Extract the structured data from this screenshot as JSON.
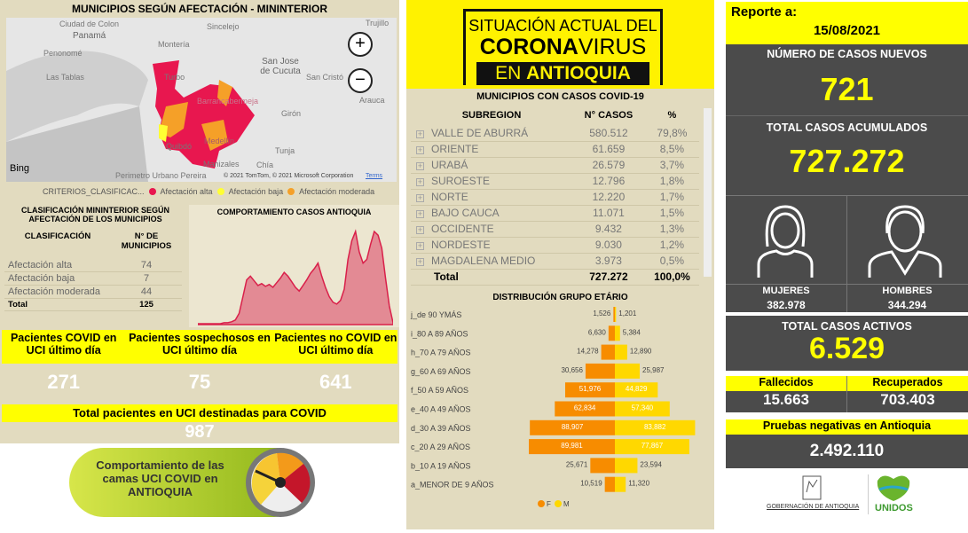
{
  "map": {
    "title": "MUNICIPIOS SEGÚN AFECTACIÓN - MININTERIOR",
    "places": [
      "Ciudad de Colon",
      "Panamá",
      "Penonomé",
      "Las Tablas",
      "Montería",
      "Sincelejo",
      "Turbo",
      "San Jose de Cucuta",
      "San Cristó",
      "Arauca",
      "Barrancabermeja",
      "Girón",
      "Tunja",
      "Medellín",
      "Quibdó",
      "Manizales",
      "Chía",
      "Trujillo",
      "Perimetro Urbano Pereira"
    ],
    "bing": "Bing",
    "copyright": "© 2021 TomTom, © 2021 Microsoft Corporation",
    "terms": "Terms",
    "zoom_in": "+",
    "zoom_out": "−"
  },
  "legend": {
    "label": "CRITERIOS_CLASIFICAC...",
    "items": [
      {
        "label": "Afectación alta",
        "color": "#e8174f"
      },
      {
        "label": "Afectación baja",
        "color": "#ffff33"
      },
      {
        "label": "Afectación moderada",
        "color": "#f5a028"
      }
    ]
  },
  "clasif": {
    "title": "CLASIFICACIÓN MININTERIOR SEGÚN AFECTACIÓN DE LOS MUNICIPIOS",
    "headers": [
      "CLASIFICACIÓN",
      "N° DE MUNICIPIOS"
    ],
    "rows": [
      [
        "Afectación alta",
        "74"
      ],
      [
        "Afectación baja",
        "7"
      ],
      [
        "Afectación moderada",
        "44"
      ]
    ],
    "total": [
      "Total",
      "125"
    ]
  },
  "chart_data": [
    {
      "type": "area",
      "title": "COMPORTAMIENTO CASOS ANTIOQUIA",
      "color": "#e0405a",
      "values": [
        1,
        1,
        1,
        1,
        1,
        1,
        1,
        2,
        2,
        3,
        5,
        12,
        30,
        48,
        52,
        47,
        42,
        44,
        41,
        43,
        40,
        45,
        50,
        56,
        52,
        46,
        40,
        36,
        42,
        48,
        55,
        60,
        66,
        52,
        40,
        30,
        24,
        22,
        26,
        38,
        70,
        90,
        100,
        78,
        66,
        70,
        86,
        100,
        96,
        82,
        50,
        20,
        2
      ]
    },
    {
      "type": "bar",
      "orientation": "horizontal-pyramid",
      "title": "DISTRIBUCIÓN GRUPO ETÁRIO",
      "categories": [
        "j_de 90 YMÁS",
        "i_80 A 89 AÑOS",
        "h_70 A 79 AÑOS",
        "g_60 A 69 AÑOS",
        "f_50 A 59 AÑOS",
        "e_40 A 49 AÑOS",
        "d_30 A 39 AÑOS",
        "c_20 A 29 AÑOS",
        "b_10 A 19 AÑOS",
        "a_MENOR DE 9 AÑOS"
      ],
      "series": [
        {
          "name": "F",
          "color": "#f78c00",
          "values": [
            1526,
            6630,
            14278,
            30656,
            51976,
            62834,
            88907,
            89981,
            25671,
            10519
          ],
          "labels": [
            "1,526",
            "6,630",
            "14,278",
            "30,656",
            "51,976",
            "62,834",
            "88,907",
            "89,981",
            "25,671",
            "10,519"
          ]
        },
        {
          "name": "M",
          "color": "#ffd800",
          "values": [
            1201,
            5384,
            12890,
            25987,
            44829,
            57340,
            83882,
            77867,
            23594,
            11320
          ],
          "labels": [
            "1,201",
            "5,384",
            "12,890",
            "25,987",
            "44,829",
            "57,340",
            "83,882",
            "77,867",
            "23,594",
            "11,320"
          ]
        }
      ],
      "legend": "bottom"
    }
  ],
  "uci": {
    "headers": [
      "Pacientes COVID en UCI último día",
      "Pacientes sospechosos en UCI último día",
      "Pacientes no COVID en UCI último día"
    ],
    "values": [
      "271",
      "75",
      "641"
    ],
    "total_label": "Total pacientes en UCI destinadas para COVID",
    "total": "987"
  },
  "banner": {
    "text": "Comportamiento de las camas UCI COVID en ANTIOQUIA"
  },
  "logo": {
    "line1": "SITUACIÓN ACTUAL DEL",
    "line2a": "CORONA",
    "line2b": "VIRUS",
    "line3a": "EN ",
    "line3b": "ANTIOQUIA"
  },
  "subregions": {
    "title": "MUNICIPIOS CON CASOS COVID-19",
    "headers": [
      "SUBREGION",
      "N° CASOS",
      "%"
    ],
    "rows": [
      [
        "VALLE DE ABURRÁ",
        "580.512",
        "79,8%"
      ],
      [
        "ORIENTE",
        "61.659",
        "8,5%"
      ],
      [
        "URABÁ",
        "26.579",
        "3,7%"
      ],
      [
        "SUROESTE",
        "12.796",
        "1,8%"
      ],
      [
        "NORTE",
        "12.220",
        "1,7%"
      ],
      [
        "BAJO CAUCA",
        "11.071",
        "1,5%"
      ],
      [
        "OCCIDENTE",
        "9.432",
        "1,3%"
      ],
      [
        "NORDESTE",
        "9.030",
        "1,2%"
      ],
      [
        "MAGDALENA MEDIO",
        "3.973",
        "0,5%"
      ]
    ],
    "total": [
      "Total",
      "727.272",
      "100,0%"
    ]
  },
  "report": {
    "label": "Reporte a:",
    "date": "15/08/2021",
    "new_label": "NÚMERO DE CASOS NUEVOS",
    "new": "721",
    "acc_label": "TOTAL CASOS ACUMULADOS",
    "acc": "727.272",
    "women_label": "MUJERES",
    "women": "382.978",
    "men_label": "HOMBRES",
    "men": "344.294",
    "active_label": "TOTAL CASOS ACTIVOS",
    "active": "6.529",
    "dead_label": "Fallecidos",
    "dead": "15.663",
    "rec_label": "Recuperados",
    "rec": "703.403",
    "neg_label": "Pruebas negativas en Antioquia",
    "neg": "2.492.110",
    "gov": "GOBERNACIÓN DE ANTIOQUIA",
    "unidos": "UNIDOS"
  }
}
